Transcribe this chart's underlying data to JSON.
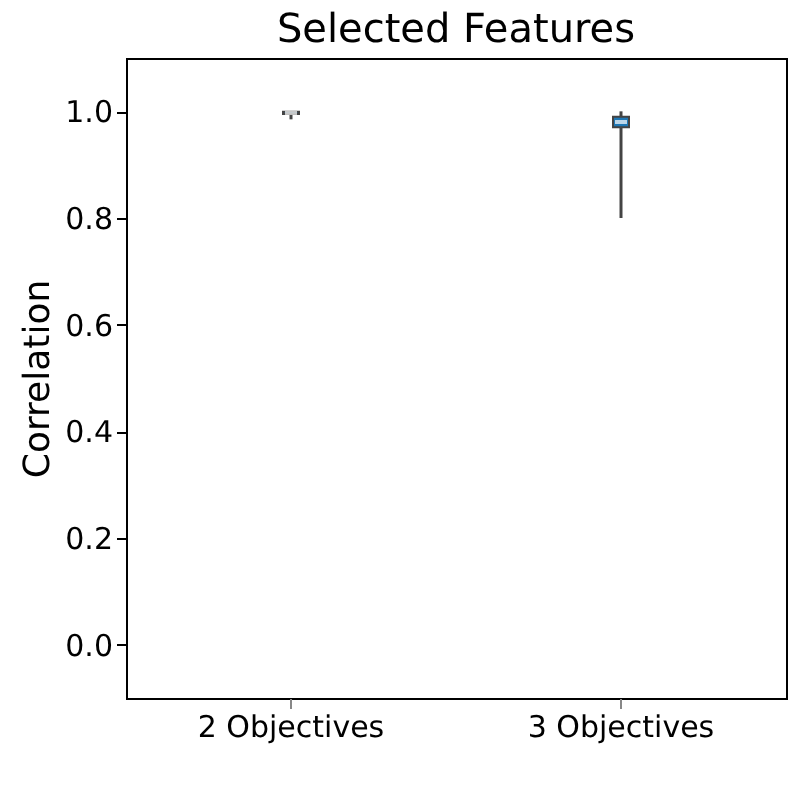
{
  "chart_data": {
    "type": "box",
    "title": "Selected Features",
    "ylabel": "Correlation",
    "categories": [
      "2 Objectives",
      "3 Objectives"
    ],
    "boxes": [
      {
        "low": 0.985,
        "q1": 0.995,
        "median": 0.997,
        "q3": 0.999,
        "high": 1.0
      },
      {
        "low": 0.8,
        "q1": 0.97,
        "median": 0.98,
        "q3": 0.99,
        "high": 1.0
      }
    ],
    "color": "#1f77b4",
    "ylim": [
      -0.1,
      1.1
    ],
    "yticks": [
      {
        "value": 0,
        "label": "0.0"
      },
      0.2,
      0.4,
      0.6,
      0.8,
      {
        "value": 1,
        "label": "1.0"
      }
    ],
    "grid": false
  }
}
